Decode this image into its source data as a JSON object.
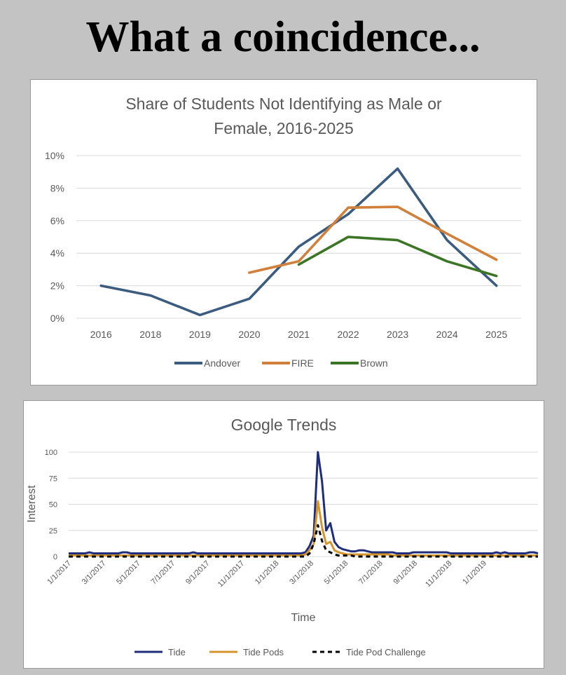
{
  "page": {
    "headline": "What a coincidence..."
  },
  "chart_data": [
    {
      "type": "line",
      "title": "Share of Students Not Identifying as Male or Female, 2016-2025",
      "title_lines": [
        "Share of Students Not Identifying as Male or",
        "Female, 2016-2025"
      ],
      "categories": [
        "2016",
        "2018",
        "2019",
        "2020",
        "2021",
        "2022",
        "2023",
        "2024",
        "2025"
      ],
      "y_ticks": [
        "0%",
        "2%",
        "4%",
        "6%",
        "8%",
        "10%"
      ],
      "ylim": [
        0,
        10
      ],
      "grid": true,
      "legend_position": "bottom",
      "series": [
        {
          "name": "Andover",
          "color": "#3b5b7f",
          "values": [
            2.0,
            1.4,
            0.2,
            1.2,
            4.4,
            6.4,
            9.2,
            4.8,
            2.0
          ]
        },
        {
          "name": "FIRE",
          "color": "#d0803a",
          "values": [
            null,
            null,
            null,
            2.8,
            3.5,
            6.8,
            6.85,
            5.2,
            3.6
          ]
        },
        {
          "name": "Brown",
          "color": "#3d7526",
          "values": [
            null,
            null,
            null,
            null,
            3.3,
            5.0,
            4.8,
            3.5,
            2.6
          ]
        }
      ]
    },
    {
      "type": "line",
      "title": "Google Trends",
      "xlabel": "Time",
      "ylabel": "Interest",
      "ylim": [
        0,
        100
      ],
      "y_ticks": [
        "0",
        "25",
        "50",
        "75",
        "100"
      ],
      "x_tick_labels": [
        "1/1/2017",
        "3/1/2017",
        "5/1/2017",
        "7/1/2017",
        "9/1/2017",
        "11/1/2017",
        "1/1/2018",
        "3/1/2018",
        "5/1/2018",
        "7/1/2018",
        "9/1/2018",
        "11/1/2018",
        "1/1/2019"
      ],
      "grid": true,
      "legend_position": "bottom",
      "x_weeks": [
        0,
        1,
        2,
        3,
        4,
        5,
        6,
        7,
        8,
        9,
        10,
        11,
        12,
        13,
        14,
        15,
        16,
        17,
        18,
        19,
        20,
        21,
        22,
        23,
        24,
        25,
        26,
        27,
        28,
        29,
        30,
        31,
        32,
        33,
        34,
        35,
        36,
        37,
        38,
        39,
        40,
        41,
        42,
        43,
        44,
        45,
        46,
        47,
        48,
        49,
        50,
        51,
        52,
        53,
        54,
        55,
        56,
        57,
        58,
        59,
        60,
        61,
        62,
        63,
        64,
        65,
        66,
        67,
        68,
        69,
        70,
        71,
        72,
        73,
        74,
        75,
        76,
        77,
        78,
        79,
        80,
        81,
        82,
        83,
        84,
        85,
        86,
        87,
        88,
        89,
        90,
        91,
        92,
        93,
        94,
        95,
        96,
        97,
        98,
        99,
        100,
        101,
        102,
        103,
        104,
        105,
        106,
        107,
        108,
        109,
        110,
        111,
        112,
        113
      ],
      "series": [
        {
          "name": "Tide",
          "color": "#1f2d7a",
          "dash": "solid",
          "values": [
            3,
            3,
            3,
            3,
            3,
            4,
            3,
            3,
            3,
            3,
            3,
            3,
            3,
            4,
            4,
            3,
            3,
            3,
            3,
            3,
            3,
            3,
            3,
            3,
            3,
            3,
            3,
            3,
            3,
            3,
            4,
            3,
            3,
            3,
            3,
            3,
            3,
            3,
            3,
            3,
            3,
            3,
            3,
            3,
            3,
            3,
            3,
            3,
            3,
            3,
            3,
            3,
            3,
            3,
            3,
            3,
            3,
            4,
            10,
            20,
            100,
            72,
            25,
            32,
            14,
            9,
            7,
            6,
            5,
            5,
            6,
            6,
            5,
            4,
            4,
            4,
            4,
            4,
            4,
            3,
            3,
            3,
            3,
            4,
            4,
            4,
            4,
            4,
            4,
            4,
            4,
            4,
            3,
            3,
            3,
            3,
            3,
            3,
            3,
            3,
            3,
            3,
            3,
            4,
            3,
            4,
            3,
            3,
            3,
            3,
            3,
            4,
            4,
            3
          ]
        },
        {
          "name": "Tide Pods",
          "color": "#d4962c",
          "dash": "solid",
          "values": [
            1,
            1,
            1,
            1,
            1,
            1,
            1,
            1,
            1,
            1,
            1,
            1,
            1,
            1,
            1,
            1,
            1,
            1,
            1,
            1,
            1,
            1,
            1,
            1,
            1,
            1,
            1,
            1,
            1,
            1,
            1,
            1,
            1,
            1,
            1,
            1,
            1,
            1,
            1,
            1,
            1,
            1,
            1,
            1,
            1,
            1,
            1,
            1,
            1,
            1,
            1,
            1,
            1,
            1,
            1,
            1,
            1,
            2,
            6,
            12,
            53,
            28,
            12,
            14,
            6,
            4,
            3,
            2,
            2,
            2,
            2,
            2,
            2,
            2,
            2,
            2,
            2,
            2,
            1,
            1,
            1,
            1,
            1,
            1,
            1,
            1,
            1,
            1,
            1,
            1,
            1,
            1,
            1,
            1,
            1,
            1,
            1,
            1,
            1,
            1,
            1,
            1,
            1,
            1,
            1,
            1,
            1,
            1,
            1,
            1,
            1,
            1,
            1,
            1
          ]
        },
        {
          "name": "Tide Pod Challenge",
          "color": "#000000",
          "dash": "dashed",
          "values": [
            0,
            0,
            0,
            0,
            0,
            0,
            0,
            0,
            0,
            0,
            0,
            0,
            0,
            0,
            0,
            0,
            0,
            0,
            0,
            0,
            0,
            0,
            0,
            0,
            0,
            0,
            0,
            0,
            0,
            0,
            0,
            0,
            0,
            0,
            0,
            0,
            0,
            0,
            0,
            0,
            0,
            0,
            0,
            0,
            0,
            0,
            0,
            0,
            0,
            0,
            0,
            0,
            0,
            0,
            0,
            0,
            0,
            0,
            3,
            12,
            30,
            15,
            6,
            4,
            2,
            1,
            1,
            1,
            1,
            0,
            0,
            0,
            0,
            0,
            0,
            0,
            0,
            0,
            0,
            0,
            0,
            0,
            0,
            0,
            0,
            0,
            0,
            0,
            0,
            0,
            0,
            0,
            0,
            0,
            0,
            0,
            0,
            0,
            0,
            0,
            0,
            0,
            0,
            0,
            0,
            0,
            0,
            0,
            0,
            0,
            0,
            0,
            0,
            0
          ]
        }
      ]
    }
  ]
}
